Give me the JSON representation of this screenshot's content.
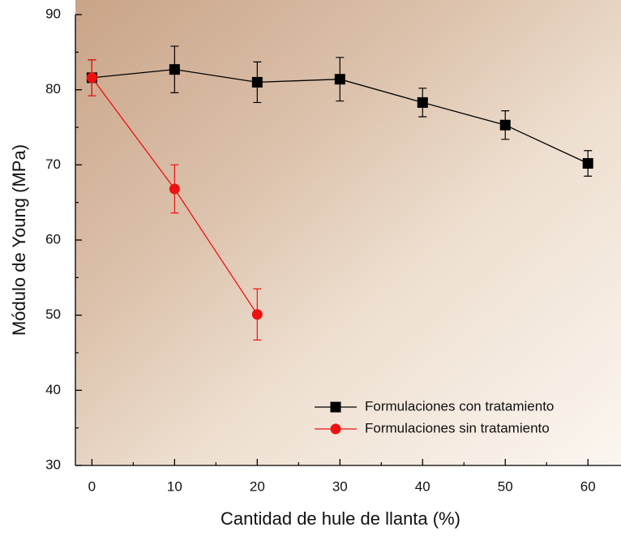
{
  "chart_data": {
    "type": "line",
    "x_label": "Cantidad de hule de llanta (%)",
    "y_label": "Módulo de Young (MPa)",
    "xlim": [
      -2,
      64
    ],
    "xticks": [
      0,
      10,
      20,
      30,
      40,
      50,
      60
    ],
    "xminorticks": [
      5,
      15,
      25,
      35,
      45,
      55
    ],
    "ylim": [
      30,
      90
    ],
    "yticks": [
      30,
      40,
      50,
      60,
      70,
      80,
      90
    ],
    "yminorticks": [
      35,
      45,
      55,
      65,
      75,
      85
    ],
    "legend": "lower-right",
    "series": [
      {
        "name": "Formulaciones con tratamiento",
        "color": "#000000",
        "marker": "square",
        "x": [
          0,
          10,
          20,
          30,
          40,
          50,
          60
        ],
        "values": [
          81.6,
          82.7,
          81.0,
          81.4,
          78.3,
          75.3,
          70.2
        ],
        "errors": [
          2.4,
          3.1,
          2.7,
          2.9,
          1.9,
          1.9,
          1.7
        ]
      },
      {
        "name": "Formulaciones sin tratamiento",
        "color": "#ee1111",
        "marker": "circle",
        "x": [
          0,
          10,
          20
        ],
        "values": [
          81.6,
          66.8,
          50.1
        ],
        "errors": [
          2.4,
          3.2,
          3.4
        ]
      }
    ]
  }
}
